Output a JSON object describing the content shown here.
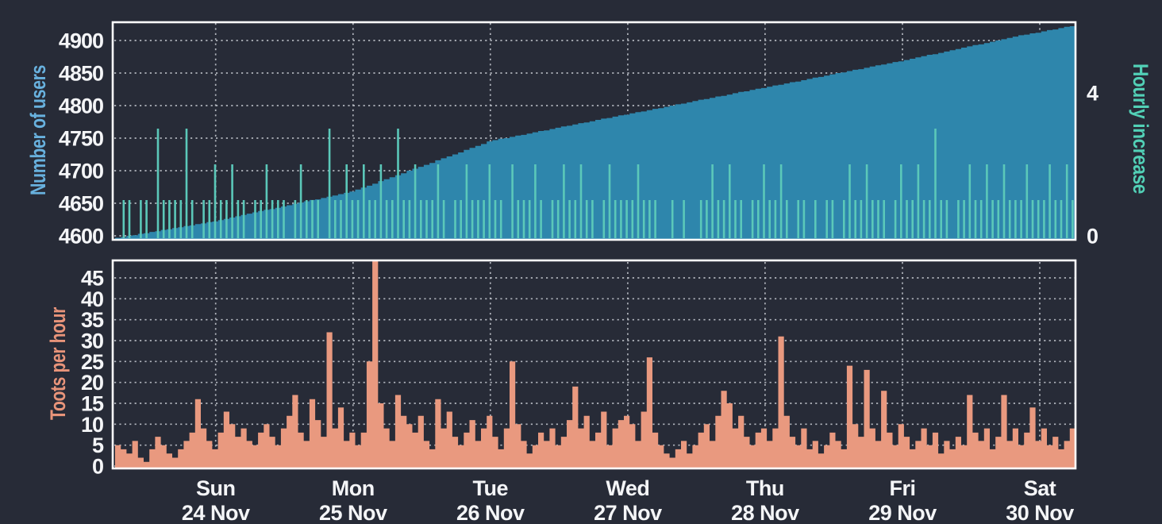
{
  "page": {
    "background": "#272b37"
  },
  "colors": {
    "users_area": "#2e86ac",
    "hourly_increase": "#5bc8b9",
    "toots_area": "#e9997f",
    "users_axis_title": "#68b1de",
    "increase_axis_title": "#52d0b6",
    "toots_axis_title": "#e8947a",
    "tick_text": "#f4f5f7",
    "gridline": "#c9cdd4",
    "plot_border": "#ffffff"
  },
  "chart_data": [
    {
      "type": "area",
      "ylabel_left": "Number of users",
      "ylabel_right": "Hourly increase",
      "y_left_ticks": [
        4600,
        4650,
        4700,
        4750,
        4800,
        4850,
        4900
      ],
      "y_left_range": [
        4595,
        4929
      ],
      "y_right_ticks": [
        0,
        4
      ],
      "y_right_range": [
        0,
        6
      ],
      "grid": true,
      "legend": "none",
      "series": [
        {
          "name": "users",
          "color": "#2e86ac",
          "values": [
            4597,
            4598,
            4600,
            4601,
            4603,
            4604,
            4606,
            4607,
            4609,
            4610,
            4612,
            4613,
            4615,
            4616,
            4618,
            4619,
            4621,
            4622,
            4624,
            4626,
            4628,
            4630,
            4632,
            4634,
            4636,
            4638,
            4640,
            4641,
            4643,
            4645,
            4647,
            4649,
            4651,
            4653,
            4655,
            4656,
            4658,
            4660,
            4662,
            4664,
            4666,
            4668,
            4671,
            4674,
            4677,
            4680,
            4684,
            4687,
            4690,
            4693,
            4696,
            4700,
            4703,
            4706,
            4709,
            4712,
            4716,
            4719,
            4722,
            4725,
            4728,
            4732,
            4735,
            4738,
            4741,
            4745,
            4747,
            4749,
            4750,
            4752,
            4754,
            4755,
            4757,
            4759,
            4761,
            4762,
            4764,
            4766,
            4768,
            4769,
            4771,
            4773,
            4774,
            4776,
            4778,
            4780,
            4781,
            4783,
            4785,
            4786,
            4788,
            4790,
            4791,
            4793,
            4795,
            4796,
            4798,
            4800,
            4802,
            4803,
            4805,
            4807,
            4809,
            4810,
            4812,
            4814,
            4815,
            4817,
            4819,
            4821,
            4822,
            4824,
            4826,
            4827,
            4829,
            4831,
            4832,
            4834,
            4836,
            4837,
            4839,
            4841,
            4843,
            4844,
            4846,
            4848,
            4850,
            4851,
            4853,
            4855,
            4856,
            4858,
            4860,
            4862,
            4863,
            4865,
            4867,
            4868,
            4870,
            4872,
            4874,
            4876,
            4878,
            4879,
            4881,
            4883,
            4885,
            4887,
            4889,
            4891,
            4893,
            4894,
            4896,
            4898,
            4900,
            4902,
            4904,
            4906,
            4908,
            4909,
            4911,
            4912,
            4914,
            4916,
            4917,
            4919,
            4921,
            4922
          ]
        },
        {
          "name": "hourly_increase",
          "color": "#5bc8b9",
          "values": [
            0,
            1,
            1,
            0,
            1,
            1,
            0,
            3,
            1,
            1,
            1,
            1,
            3,
            1,
            0,
            1,
            1,
            2,
            1,
            1,
            2,
            1,
            1,
            0,
            1,
            1,
            2,
            1,
            1,
            1,
            0,
            1,
            2,
            1,
            1,
            1,
            0,
            3,
            1,
            1,
            2,
            1,
            1,
            2,
            1,
            1,
            2,
            1,
            1,
            3,
            1,
            1,
            2,
            1,
            1,
            1,
            2,
            1,
            0,
            1,
            1,
            2,
            1,
            1,
            1,
            2,
            1,
            1,
            0,
            2,
            1,
            1,
            1,
            2,
            1,
            0,
            1,
            1,
            2,
            1,
            1,
            2,
            1,
            1,
            0,
            1,
            2,
            1,
            1,
            1,
            1,
            2,
            1,
            1,
            1,
            0,
            0,
            1,
            0,
            1,
            0,
            0,
            1,
            1,
            2,
            1,
            1,
            2,
            1,
            1,
            0,
            1,
            1,
            2,
            1,
            1,
            2,
            1,
            0,
            1,
            1,
            0,
            1,
            0,
            1,
            1,
            0,
            1,
            2,
            1,
            1,
            2,
            1,
            1,
            1,
            0,
            1,
            2,
            1,
            1,
            2,
            1,
            1,
            3,
            1,
            1,
            0,
            1,
            1,
            2,
            1,
            1,
            2,
            1,
            1,
            2,
            1,
            1,
            1,
            2,
            1,
            1,
            1,
            2,
            1,
            1,
            2,
            1
          ]
        }
      ]
    },
    {
      "type": "area",
      "ylabel_left": "Toots per hour",
      "y_left_ticks": [
        0,
        5,
        10,
        15,
        20,
        25,
        30,
        35,
        40,
        45
      ],
      "y_left_range": [
        -0.5,
        49.4
      ],
      "grid": true,
      "legend": "none",
      "x_day_labels": [
        {
          "day": "Sun",
          "date": "24 Nov"
        },
        {
          "day": "Mon",
          "date": "25 Nov"
        },
        {
          "day": "Tue",
          "date": "26 Nov"
        },
        {
          "day": "Wed",
          "date": "27 Nov"
        },
        {
          "day": "Thu",
          "date": "28 Nov"
        },
        {
          "day": "Fri",
          "date": "29 Nov"
        },
        {
          "day": "Sat",
          "date": "30 Nov"
        }
      ],
      "series": [
        {
          "name": "toots_per_hour",
          "color": "#e9997f",
          "values": [
            5,
            4,
            3,
            6,
            2,
            1,
            4,
            7,
            5,
            3,
            2,
            4,
            6,
            8,
            16,
            9,
            6,
            4,
            8,
            13,
            10,
            7,
            9,
            6,
            5,
            8,
            10,
            7,
            5,
            9,
            12,
            17,
            8,
            6,
            16,
            11,
            7,
            32,
            9,
            14,
            6,
            8,
            5,
            8,
            25,
            49,
            15,
            9,
            6,
            17,
            12,
            10,
            8,
            12,
            6,
            4,
            16,
            9,
            13,
            7,
            5,
            8,
            11,
            6,
            9,
            12,
            7,
            4,
            9,
            25,
            10,
            6,
            3,
            5,
            8,
            6,
            9,
            5,
            7,
            11,
            19,
            9,
            12,
            6,
            8,
            13,
            5,
            9,
            11,
            12,
            10,
            6,
            13,
            26,
            8,
            5,
            3,
            2,
            4,
            6,
            3,
            5,
            8,
            10,
            6,
            12,
            18,
            15,
            9,
            12,
            7,
            5,
            8,
            9,
            6,
            9,
            31,
            12,
            7,
            5,
            9,
            4,
            6,
            3,
            5,
            8,
            6,
            4,
            24,
            10,
            7,
            23,
            9,
            6,
            18,
            8,
            5,
            10,
            7,
            4,
            6,
            9,
            5,
            8,
            3,
            6,
            4,
            7,
            5,
            17,
            8,
            6,
            9,
            4,
            7,
            17,
            6,
            9,
            5,
            8,
            14,
            6,
            9,
            5,
            7,
            4,
            6,
            9
          ]
        }
      ]
    }
  ]
}
